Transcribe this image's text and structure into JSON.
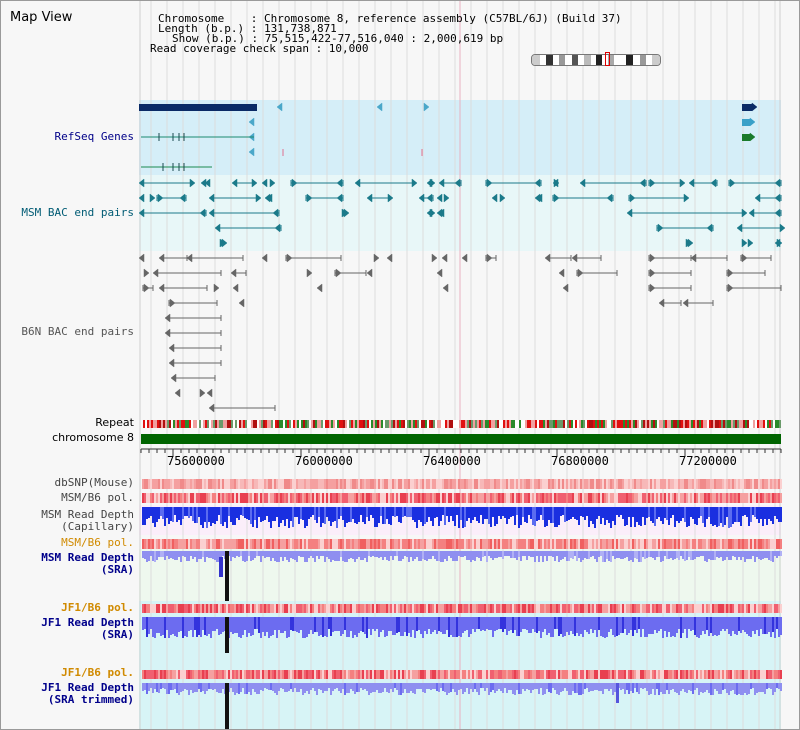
{
  "view_title": "Map View",
  "info": {
    "chromosome": "Chromosome    : Chromosome 8, reference assembly (C57BL/6J) (Build 37)",
    "length": "Length (b.p.) : 131,738,871",
    "show": "Show (b.p.) : 75,515,422-77,516,040 : 2,000,619 bp",
    "span": "Read coverage check span : 10,000"
  },
  "tracks": {
    "refseq": "RefSeq Genes",
    "msm_bac": "MSM BAC end pairs",
    "b6n_bac": "B6N BAC end pairs",
    "repeat": "Repeat",
    "chromosome": "chromosome 8",
    "dbsnp": "dbSNP(Mouse)",
    "msm_b6_pol_1": "MSM/B6 pol.",
    "msm_depth_cap_1": "MSM Read Depth",
    "msm_depth_cap_2": "(Capillary)",
    "msm_b6_pol_2": "MSM/B6 pol.",
    "msm_depth_sra_1": "MSM Read Depth",
    "msm_depth_sra_2": "(SRA)",
    "jf1_b6_pol_1": "JF1/B6 pol.",
    "jf1_depth_sra_1": "JF1 Read Depth",
    "jf1_depth_sra_2": "(SRA)",
    "jf1_b6_pol_2": "JF1/B6 pol.",
    "jf1_depth_trim_1": "JF1 Read Depth",
    "jf1_depth_trim_2": "(SRA trimmed)"
  },
  "ruler": {
    "ticks": [
      "75600000",
      "76000000",
      "76400000",
      "76800000",
      "77200000"
    ]
  },
  "colors": {
    "refseq_label": "#000088",
    "msm_label": "#005b74",
    "b6n_label": "#555555",
    "msm_pol_label": "#d08a00",
    "depth_label": "#00008b",
    "refseq_bg": "#d5eef8",
    "msm_bg": "#e8f7f8",
    "chromosome_bar": "#006400",
    "snp": "#f5a0a0",
    "depth_cap": "#1a2fe0",
    "depth_sra": "#8f8ff0",
    "jf1_bg": "#d7f4f6"
  }
}
